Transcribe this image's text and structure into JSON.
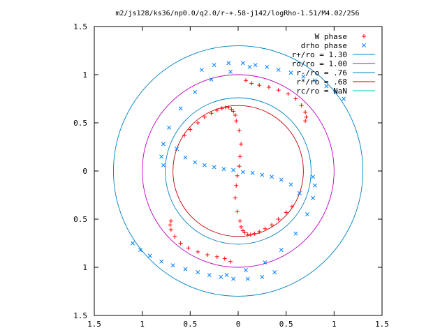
{
  "chart_data": {
    "type": "scatter",
    "title": "m2/js128/ks36/np0.0/q2.0/r-+.58-j142/logRho-1.51/M4.02/256",
    "xlim": [
      -1.5,
      1.5
    ],
    "ylim": [
      -1.5,
      1.5
    ],
    "xticks": [
      -1.5,
      -1,
      -0.5,
      0,
      0.5,
      1,
      1.5
    ],
    "xtick_labels": [
      "1.5",
      "1",
      "0.5",
      "0",
      "0.5",
      "1",
      "1.5"
    ],
    "yticks": [
      1.5,
      1,
      0.5,
      0,
      -0.5,
      -1,
      -1.5
    ],
    "ytick_labels": [
      "1.5",
      "1",
      "0.5",
      "0",
      "0.5",
      "1",
      "1.5"
    ],
    "grid": false,
    "legend_position": "top-right",
    "colors": {
      "w_phase": "#ff0000",
      "drho_phase": "#0080ff",
      "r_plus": "#0080c0",
      "ro": "#c000c0",
      "r_minus": "#0080c0",
      "r_star": "#c00000",
      "rc": "#00c0c0"
    },
    "legend": [
      {
        "key": "w_phase",
        "label": "W phase",
        "marker": "plus"
      },
      {
        "key": "drho_phase",
        "label": "drho phase",
        "marker": "cross"
      },
      {
        "key": "r_plus",
        "label": "r+/ro = 1.30",
        "marker": "line"
      },
      {
        "key": "ro",
        "label": "ro/ro = 1.00",
        "marker": "line"
      },
      {
        "key": "r_minus",
        "label": "r-/ro = .76",
        "marker": "line"
      },
      {
        "key": "r_star",
        "label": "r*/ro = .68",
        "marker": "line"
      },
      {
        "key": "rc",
        "label": "rc/ro = NaN",
        "marker": "line"
      }
    ],
    "circles": [
      {
        "key": "r_plus",
        "radius": 1.3
      },
      {
        "key": "ro",
        "radius": 1.0
      },
      {
        "key": "r_minus",
        "radius": 0.76
      },
      {
        "key": "r_star",
        "radius": 0.68
      }
    ],
    "series": [
      {
        "name": "W phase",
        "marker": "plus",
        "x": [
          0.01,
          0.02,
          0.03,
          0.01,
          -0.02,
          -0.03,
          -0.05,
          -0.07,
          -0.1,
          -0.13,
          -0.17,
          -0.22,
          -0.28,
          -0.35,
          -0.42,
          -0.5,
          -0.56,
          -0.01,
          -0.02,
          -0.03,
          -0.01,
          0.02,
          0.03,
          0.05,
          0.07,
          0.1,
          0.13,
          0.17,
          0.22,
          0.28,
          0.35,
          0.42,
          0.5,
          0.56,
          -0.08,
          -0.14,
          -0.22,
          -0.32,
          -0.42,
          -0.52,
          -0.6,
          -0.66,
          -0.7,
          -0.71,
          -0.7,
          0.08,
          0.14,
          0.22,
          0.32,
          0.42,
          0.52,
          0.6,
          0.66,
          0.7,
          0.71,
          0.7
        ],
        "y": [
          0.05,
          0.15,
          0.28,
          0.42,
          0.52,
          0.58,
          0.62,
          0.64,
          0.66,
          0.66,
          0.65,
          0.63,
          0.6,
          0.56,
          0.5,
          0.43,
          0.37,
          -0.05,
          -0.15,
          -0.28,
          -0.42,
          -0.52,
          -0.58,
          -0.62,
          -0.64,
          -0.66,
          -0.66,
          -0.65,
          -0.63,
          -0.6,
          -0.56,
          -0.5,
          -0.43,
          -0.37,
          -0.94,
          -0.91,
          -0.89,
          -0.87,
          -0.84,
          -0.8,
          -0.75,
          -0.68,
          -0.61,
          -0.56,
          -0.52,
          0.94,
          0.91,
          0.89,
          0.87,
          0.84,
          0.8,
          0.75,
          0.68,
          0.61,
          0.56,
          0.52
        ]
      },
      {
        "name": "drho phase",
        "marker": "cross",
        "x": [
          -0.64,
          -0.55,
          -0.45,
          -0.35,
          -0.25,
          -0.15,
          -0.05,
          0.05,
          0.15,
          0.25,
          0.35,
          0.45,
          0.55,
          0.64,
          -0.78,
          -0.8,
          -0.78,
          -0.72,
          -0.6,
          -0.45,
          -0.28,
          -0.08,
          0.12,
          0.78,
          0.8,
          0.78,
          0.72,
          0.6,
          0.45,
          0.28,
          0.08,
          -0.12,
          -1.1,
          -1.02,
          -0.92,
          -0.8,
          -0.68,
          -0.55,
          -0.42,
          -0.3,
          -0.18,
          -0.05,
          0.1,
          0.25,
          0.38,
          1.1,
          1.02,
          0.92,
          0.8,
          0.68,
          0.55,
          0.42,
          0.3,
          0.18,
          0.05,
          -0.1,
          -0.25,
          -0.38
        ],
        "y": [
          0.23,
          0.14,
          0.09,
          0.06,
          0.04,
          0.02,
          0.01,
          -0.01,
          -0.02,
          -0.04,
          -0.06,
          -0.09,
          -0.14,
          -0.23,
          0.06,
          0.15,
          0.28,
          0.45,
          0.65,
          0.82,
          0.95,
          1.03,
          1.08,
          -0.06,
          -0.15,
          -0.28,
          -0.45,
          -0.65,
          -0.82,
          -0.95,
          -1.03,
          -1.08,
          -0.75,
          -0.82,
          -0.88,
          -0.94,
          -0.98,
          -1.02,
          -1.05,
          -1.08,
          -1.1,
          -1.12,
          -1.12,
          -1.1,
          -1.05,
          0.75,
          0.82,
          0.88,
          0.94,
          0.98,
          1.02,
          1.05,
          1.08,
          1.1,
          1.12,
          1.12,
          1.1,
          1.05
        ]
      }
    ]
  }
}
